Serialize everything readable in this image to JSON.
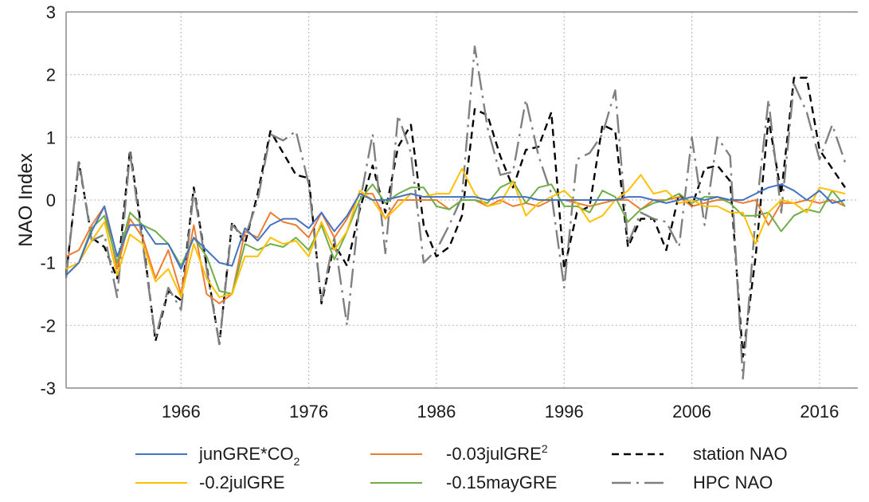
{
  "chart_data": {
    "type": "line",
    "title": "",
    "xlabel": "",
    "ylabel": "NAO Index",
    "xlim": [
      1957,
      2019
    ],
    "ylim": [
      -3,
      3
    ],
    "x_ticks": [
      "1966",
      "1976",
      "1986",
      "1996",
      "2006",
      "2016"
    ],
    "y_ticks": [
      "-3",
      "-2",
      "-1",
      "0",
      "1",
      "2",
      "3"
    ],
    "grid": true,
    "legend_position": "bottom",
    "x": [
      1957,
      1958,
      1959,
      1960,
      1961,
      1962,
      1963,
      1964,
      1965,
      1966,
      1967,
      1968,
      1969,
      1970,
      1971,
      1972,
      1973,
      1974,
      1975,
      1976,
      1977,
      1978,
      1979,
      1980,
      1981,
      1982,
      1983,
      1984,
      1985,
      1986,
      1987,
      1988,
      1989,
      1990,
      1991,
      1992,
      1993,
      1994,
      1995,
      1996,
      1997,
      1998,
      1999,
      2000,
      2001,
      2002,
      2003,
      2004,
      2005,
      2006,
      2007,
      2008,
      2009,
      2010,
      2011,
      2012,
      2013,
      2014,
      2015,
      2016,
      2017,
      2018
    ],
    "series": [
      {
        "name": "junGRE*CO",
        "name_subscript": "2",
        "color": "#4472c4",
        "dash": "solid",
        "values": [
          -1.2,
          -1.0,
          -0.5,
          -0.1,
          -0.9,
          -0.4,
          -0.4,
          -0.7,
          -0.7,
          -1.1,
          -0.6,
          -0.8,
          -1.0,
          -1.05,
          -0.45,
          -0.65,
          -0.4,
          -0.3,
          -0.3,
          -0.45,
          -0.2,
          -0.5,
          -0.25,
          0.1,
          0.0,
          0.0,
          0.05,
          0.1,
          0.05,
          0.05,
          0.05,
          0.05,
          0.05,
          0.0,
          0.05,
          0.05,
          0.05,
          0.0,
          0.0,
          0.0,
          0.0,
          0.0,
          0.0,
          0.0,
          0.05,
          0.05,
          0.0,
          -0.05,
          0.0,
          0.05,
          0.0,
          0.05,
          0.0,
          0.0,
          0.1,
          0.2,
          0.25,
          0.15,
          0.0,
          0.15,
          -0.05,
          0.0
        ]
      },
      {
        "name": "-0.03julGRE",
        "name_superscript": "2",
        "color": "#ed7d31",
        "dash": "solid",
        "values": [
          -0.9,
          -0.8,
          -0.4,
          -0.1,
          -1.1,
          -0.3,
          -0.6,
          -1.25,
          -0.8,
          -1.5,
          -0.4,
          -1.5,
          -1.65,
          -1.5,
          -0.5,
          -0.6,
          -0.2,
          -0.35,
          -0.4,
          -0.6,
          -0.2,
          -0.6,
          -0.3,
          0.1,
          0.1,
          -0.3,
          0.0,
          0.0,
          0.0,
          0.0,
          -0.15,
          0.0,
          0.0,
          -0.1,
          0.0,
          -0.1,
          -0.05,
          -0.1,
          0.0,
          0.0,
          -0.05,
          -0.1,
          -0.05,
          0.0,
          0.0,
          -0.15,
          0.0,
          0.0,
          0.05,
          -0.1,
          -0.05,
          0.0,
          0.0,
          -0.05,
          0.0,
          -0.4,
          -0.05,
          -0.05,
          0.0,
          -0.05,
          0.0,
          -0.1
        ]
      },
      {
        "name": "station NAO",
        "color": "#000000",
        "dash": "dashed",
        "values": [
          -1.2,
          0.6,
          -0.6,
          -0.75,
          -1.25,
          0.8,
          -0.6,
          -2.25,
          -1.45,
          -1.6,
          0.2,
          -1.05,
          -2.3,
          -0.35,
          -0.7,
          0.1,
          1.1,
          0.75,
          0.4,
          0.35,
          -1.65,
          -0.7,
          -1.05,
          -0.15,
          0.55,
          -0.2,
          0.85,
          1.2,
          -0.4,
          -0.9,
          -0.75,
          -0.25,
          1.45,
          1.35,
          0.7,
          0.2,
          0.8,
          0.85,
          1.4,
          -1.1,
          -0.2,
          -0.1,
          1.2,
          1.1,
          -0.75,
          -0.3,
          -0.3,
          -0.8,
          0.1,
          -0.1,
          0.5,
          0.55,
          0.3,
          -2.5,
          -0.9,
          1.3,
          0.1,
          1.95,
          1.95,
          0.8,
          0.5,
          0.2
        ]
      },
      {
        "name": "-0.15mayGRE",
        "color": "#70ad47",
        "dash": "solid",
        "values": [
          -1.2,
          -1.0,
          -0.45,
          -0.25,
          -1.0,
          -0.2,
          -0.4,
          -0.5,
          -0.7,
          -1.05,
          -0.6,
          -0.9,
          -1.45,
          -1.5,
          -0.7,
          -0.8,
          -0.7,
          -0.75,
          -0.6,
          -0.8,
          -0.4,
          -0.95,
          -0.5,
          0.0,
          0.25,
          -0.05,
          0.1,
          0.2,
          0.2,
          -0.1,
          -0.15,
          0.0,
          0.0,
          -0.05,
          0.2,
          0.3,
          -0.05,
          0.2,
          0.25,
          -0.1,
          -0.1,
          -0.2,
          0.15,
          0.05,
          -0.35,
          -0.15,
          -0.05,
          0.0,
          0.1,
          -0.05,
          0.05,
          0.05,
          -0.05,
          -0.25,
          -0.25,
          -0.2,
          -0.5,
          -0.25,
          -0.15,
          -0.2,
          0.15,
          -0.1
        ]
      },
      {
        "name": "-0.2julGRE",
        "color": "#ffc000",
        "dash": "solid",
        "values": [
          -1.1,
          -1.0,
          -0.65,
          -0.35,
          -1.2,
          -0.55,
          -0.7,
          -1.3,
          -1.1,
          -1.55,
          -0.7,
          -1.25,
          -1.55,
          -1.5,
          -0.9,
          -0.9,
          -0.6,
          -0.7,
          -0.65,
          -0.9,
          -0.35,
          -0.8,
          -0.5,
          0.15,
          0.0,
          -0.3,
          -0.1,
          0.1,
          0.05,
          0.1,
          0.1,
          0.5,
          0.1,
          -0.1,
          -0.05,
          0.3,
          -0.25,
          -0.05,
          0.05,
          0.15,
          -0.05,
          -0.35,
          -0.25,
          0.0,
          0.15,
          0.4,
          0.1,
          0.15,
          -0.05,
          0.0,
          -0.1,
          -0.1,
          -0.2,
          -0.2,
          -0.7,
          -0.2,
          0.0,
          -0.05,
          -0.2,
          0.2,
          0.15,
          0.1
        ]
      },
      {
        "name": "HPC NAO",
        "color": "#808080",
        "dash": "dashdot",
        "values": [
          -1.25,
          0.65,
          -0.65,
          -0.55,
          -1.55,
          0.75,
          -0.7,
          -2.2,
          -1.4,
          -1.75,
          0.15,
          -1.1,
          -2.3,
          -0.4,
          -0.6,
          0.0,
          1.05,
          0.95,
          1.1,
          0.25,
          -1.6,
          -0.6,
          -2.0,
          -0.05,
          1.05,
          -0.85,
          1.35,
          0.75,
          -1.0,
          -0.8,
          -0.4,
          0.05,
          2.45,
          1.15,
          0.4,
          0.45,
          1.6,
          0.7,
          0.1,
          -1.4,
          0.65,
          0.75,
          1.05,
          1.75,
          -0.7,
          -0.2,
          -0.3,
          -0.35,
          -0.75,
          1.0,
          -0.4,
          1.0,
          0.7,
          -2.85,
          -0.25,
          1.6,
          -0.2,
          1.85,
          1.4,
          0.65,
          1.2,
          0.6
        ]
      }
    ]
  },
  "legend": {
    "rows": [
      [
        {
          "series": 0,
          "label": "junGRE*CO",
          "sub": "2"
        },
        {
          "series": 1,
          "label": "-0.03julGRE",
          "sup": "2"
        },
        {
          "series": 2,
          "label": "station NAO"
        }
      ],
      [
        {
          "series": 4,
          "label": "-0.2julGRE"
        },
        {
          "series": 3,
          "label": "-0.15mayGRE"
        },
        {
          "series": 5,
          "label": "HPC NAO"
        }
      ]
    ]
  }
}
